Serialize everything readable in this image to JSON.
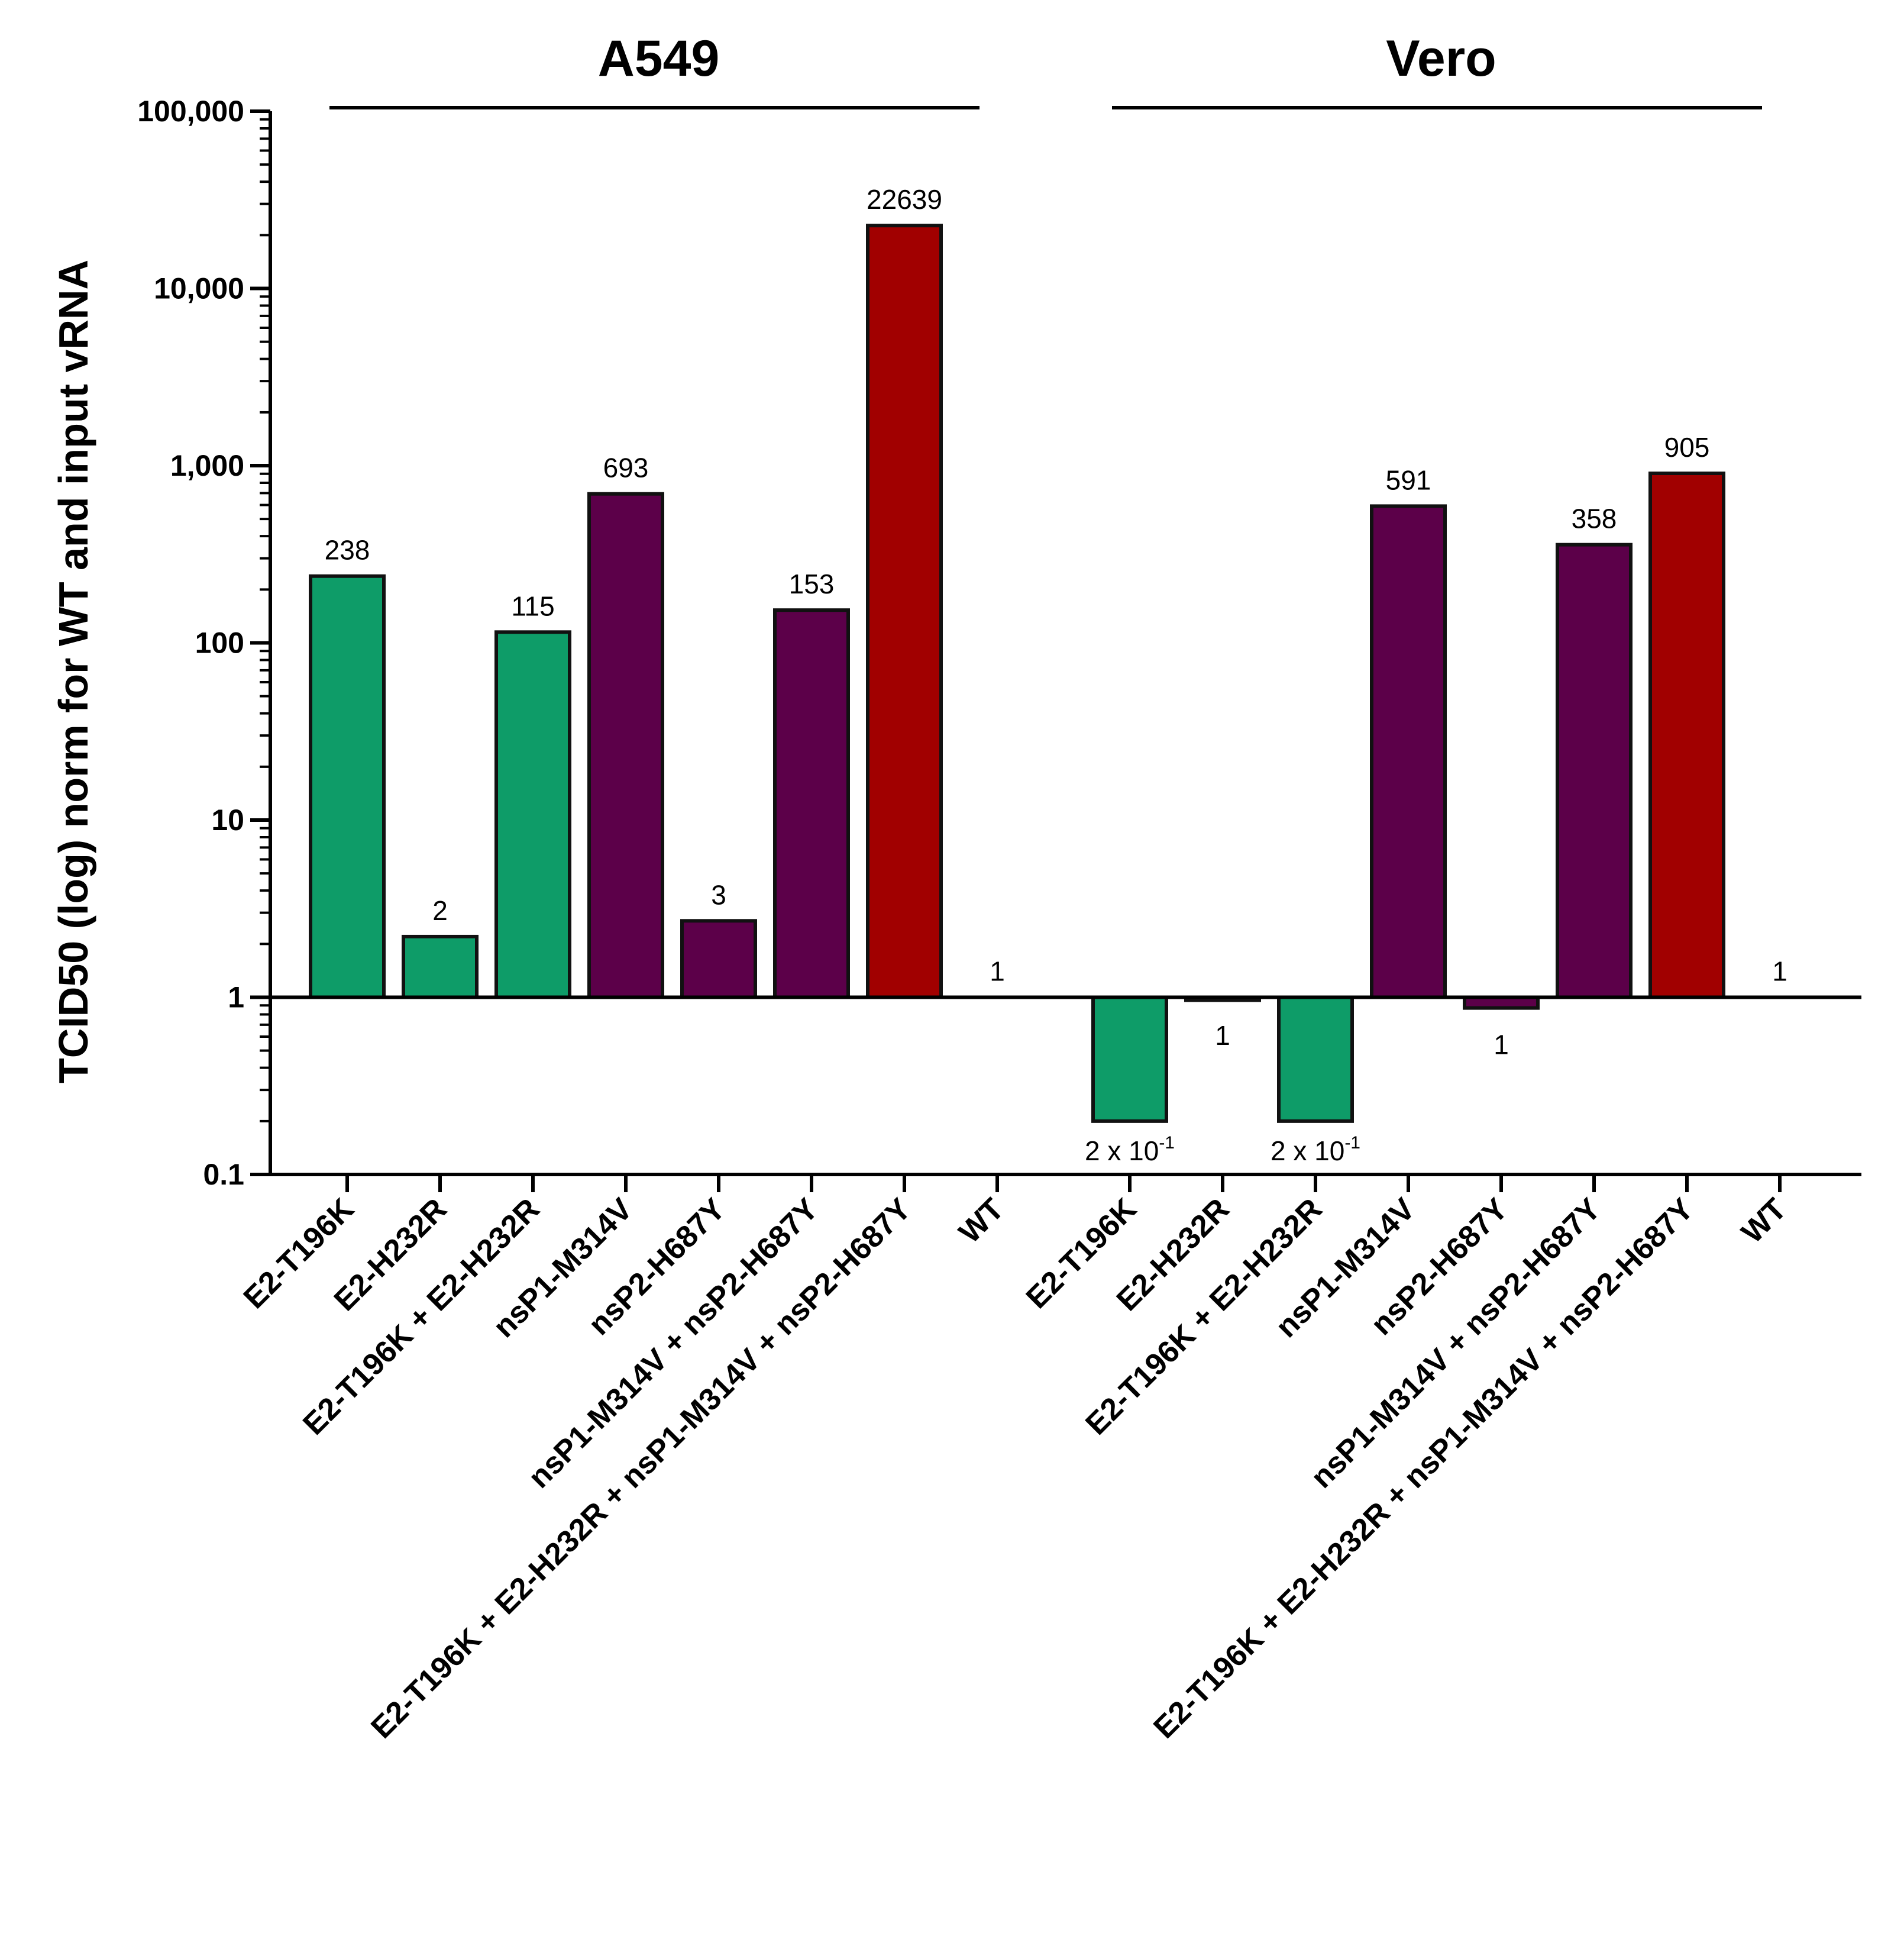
{
  "chart_data": {
    "type": "bar",
    "yscale": "log",
    "ylabel": "TCID50 (log) norm for WT and input vRNA",
    "ylim": [
      0.1,
      100000
    ],
    "baseline": 1,
    "yticks": [
      {
        "value": 0.1,
        "label": "0.1"
      },
      {
        "value": 1,
        "label": "1"
      },
      {
        "value": 10,
        "label": "10"
      },
      {
        "value": 100,
        "label": "100"
      },
      {
        "value": 1000,
        "label": "1,000"
      },
      {
        "value": 10000,
        "label": "10,000"
      },
      {
        "value": 100000,
        "label": "100,000"
      }
    ],
    "colors": {
      "E2": "#0e9c68",
      "nsP": "#5c0049",
      "combined": "#a10000",
      "WT": "#000000",
      "outline": "#111111"
    },
    "groups": [
      {
        "name": "A549",
        "bars": [
          {
            "category": "E2-T196K",
            "value": 238,
            "label": "238",
            "color_key": "E2"
          },
          {
            "category": "E2-H232R",
            "value": 2.2,
            "label": "2",
            "color_key": "E2"
          },
          {
            "category": "E2-T196K + E2-H232R",
            "value": 115,
            "label": "115",
            "color_key": "E2"
          },
          {
            "category": "nsP1-M314V",
            "value": 693,
            "label": "693",
            "color_key": "nsP"
          },
          {
            "category": "nsP2-H687Y",
            "value": 2.7,
            "label": "3",
            "color_key": "nsP"
          },
          {
            "category": "nsP1-M314V + nsP2-H687Y",
            "value": 153,
            "label": "153",
            "color_key": "nsP"
          },
          {
            "category": "E2-T196K + E2-H232R + nsP1-M314V + nsP2-H687Y",
            "value": 22639,
            "label": "22639",
            "color_key": "combined"
          },
          {
            "category": "WT",
            "value": 1,
            "label": "1",
            "color_key": "WT"
          }
        ]
      },
      {
        "name": "Vero",
        "bars": [
          {
            "category": "E2-T196K",
            "value": 0.2,
            "label": "2 x 10",
            "exp": "-1",
            "color_key": "E2"
          },
          {
            "category": "E2-H232R",
            "value": 0.98,
            "label": "1",
            "color_key": "E2"
          },
          {
            "category": "E2-T196K + E2-H232R",
            "value": 0.2,
            "label": "2 x 10",
            "exp": "-1",
            "color_key": "E2"
          },
          {
            "category": "nsP1-M314V",
            "value": 591,
            "label": "591",
            "color_key": "nsP"
          },
          {
            "category": "nsP2-H687Y",
            "value": 0.87,
            "label": "1",
            "color_key": "nsP"
          },
          {
            "category": "nsP1-M314V + nsP2-H687Y",
            "value": 358,
            "label": "358",
            "color_key": "nsP"
          },
          {
            "category": "E2-T196K + E2-H232R + nsP1-M314V + nsP2-H687Y",
            "value": 905,
            "label": "905",
            "color_key": "combined"
          },
          {
            "category": "WT",
            "value": 1,
            "label": "1",
            "color_key": "WT"
          }
        ]
      }
    ]
  }
}
